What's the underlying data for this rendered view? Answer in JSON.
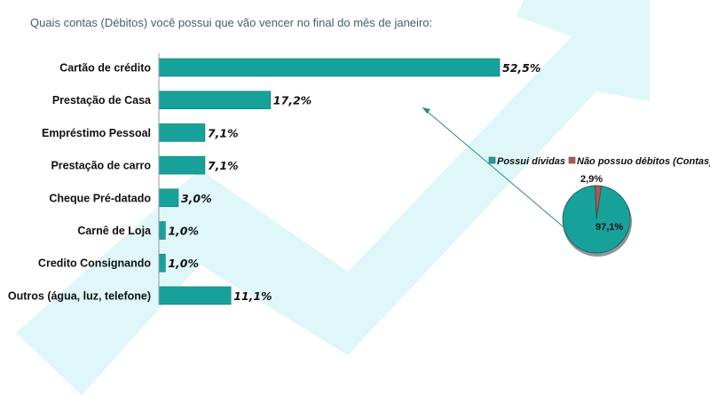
{
  "question": "Quais contas (Débitos) você possui que vão vencer no final do mês de janeiro:",
  "colors": {
    "bar": "#17a19b",
    "bar_stroke": "#0e7c77",
    "background_arrow": "#dff7f8",
    "pie_main": "#17a19b",
    "pie_minor": "#c0504d"
  },
  "chart_data": [
    {
      "type": "bar",
      "orientation": "horizontal",
      "categories": [
        "Cartão de crédito",
        "Prestação de Casa",
        "Empréstimo Pessoal",
        "Prestação de carro",
        "Cheque Pré-datado",
        "Carnê de Loja",
        "Credito Consignando",
        "Outros (água, luz, telefone)"
      ],
      "values": [
        52.5,
        17.2,
        7.1,
        7.1,
        3.0,
        1.0,
        1.0,
        11.1
      ],
      "value_labels": [
        "52,5%",
        "17,2%",
        "7,1%",
        "7,1%",
        "3,0%",
        "1,0%",
        "1,0%",
        "11,1%"
      ],
      "xlim": [
        0,
        52.5
      ],
      "grid": false
    },
    {
      "type": "pie",
      "categories": [
        "Possui dividas",
        "Não possuo débitos (Contas)"
      ],
      "values": [
        97.1,
        2.9
      ],
      "value_labels": [
        "97,1%",
        "2,9%"
      ],
      "legend": "top"
    }
  ]
}
